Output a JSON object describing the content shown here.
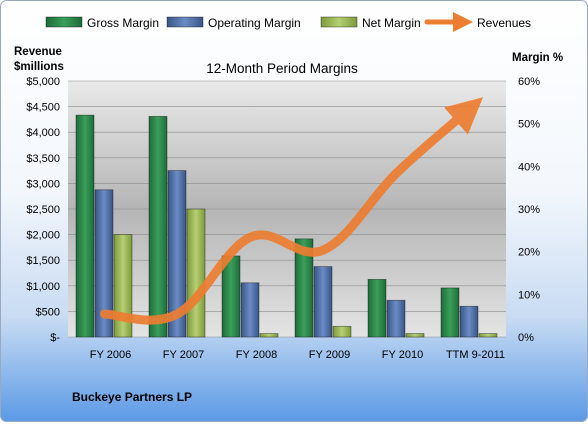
{
  "chart_data": {
    "type": "bar",
    "title": "12-Month Period Margins",
    "company": "Buckeye Partners LP",
    "ylabel_left": [
      "Revenue",
      "$millions"
    ],
    "ylabel_right": "Margin %",
    "categories": [
      "FY 2006",
      "FY 2007",
      "FY 2008",
      "FY 2009",
      "FY 2010",
      "TTM 9-2011"
    ],
    "left_axis": {
      "min": 0,
      "max": 5000,
      "ticks": [
        "$-",
        "$500",
        "$1,000",
        "$1,500",
        "$2,000",
        "$2,500",
        "$3,000",
        "$3,500",
        "$4,000",
        "$4,500",
        "$5,000"
      ]
    },
    "right_axis": {
      "min": 0,
      "max": 60,
      "ticks": [
        "0%",
        "10%",
        "20%",
        "30%",
        "40%",
        "50%",
        "60%"
      ]
    },
    "series": [
      {
        "name": "Gross Margin",
        "kind": "bar",
        "axis": "right",
        "color": "#2e8b57",
        "values": [
          52,
          51.7,
          19,
          23,
          13.5,
          11.5
        ]
      },
      {
        "name": "Operating Margin",
        "kind": "bar",
        "axis": "right",
        "color": "#4f6fa8",
        "values": [
          34.5,
          39,
          12.7,
          16.5,
          8.6,
          7.2
        ]
      },
      {
        "name": "Net Margin",
        "kind": "bar",
        "axis": "right",
        "color": "#9bbb59",
        "values": [
          24,
          30,
          0.8,
          2.5,
          0.8,
          0.8
        ]
      },
      {
        "name": "Revenues",
        "kind": "line",
        "axis": "left",
        "color": "#ed7d31",
        "values": [
          450,
          450,
          1950,
          1700,
          3200,
          4450
        ]
      }
    ],
    "grid": true,
    "legend": "top"
  }
}
